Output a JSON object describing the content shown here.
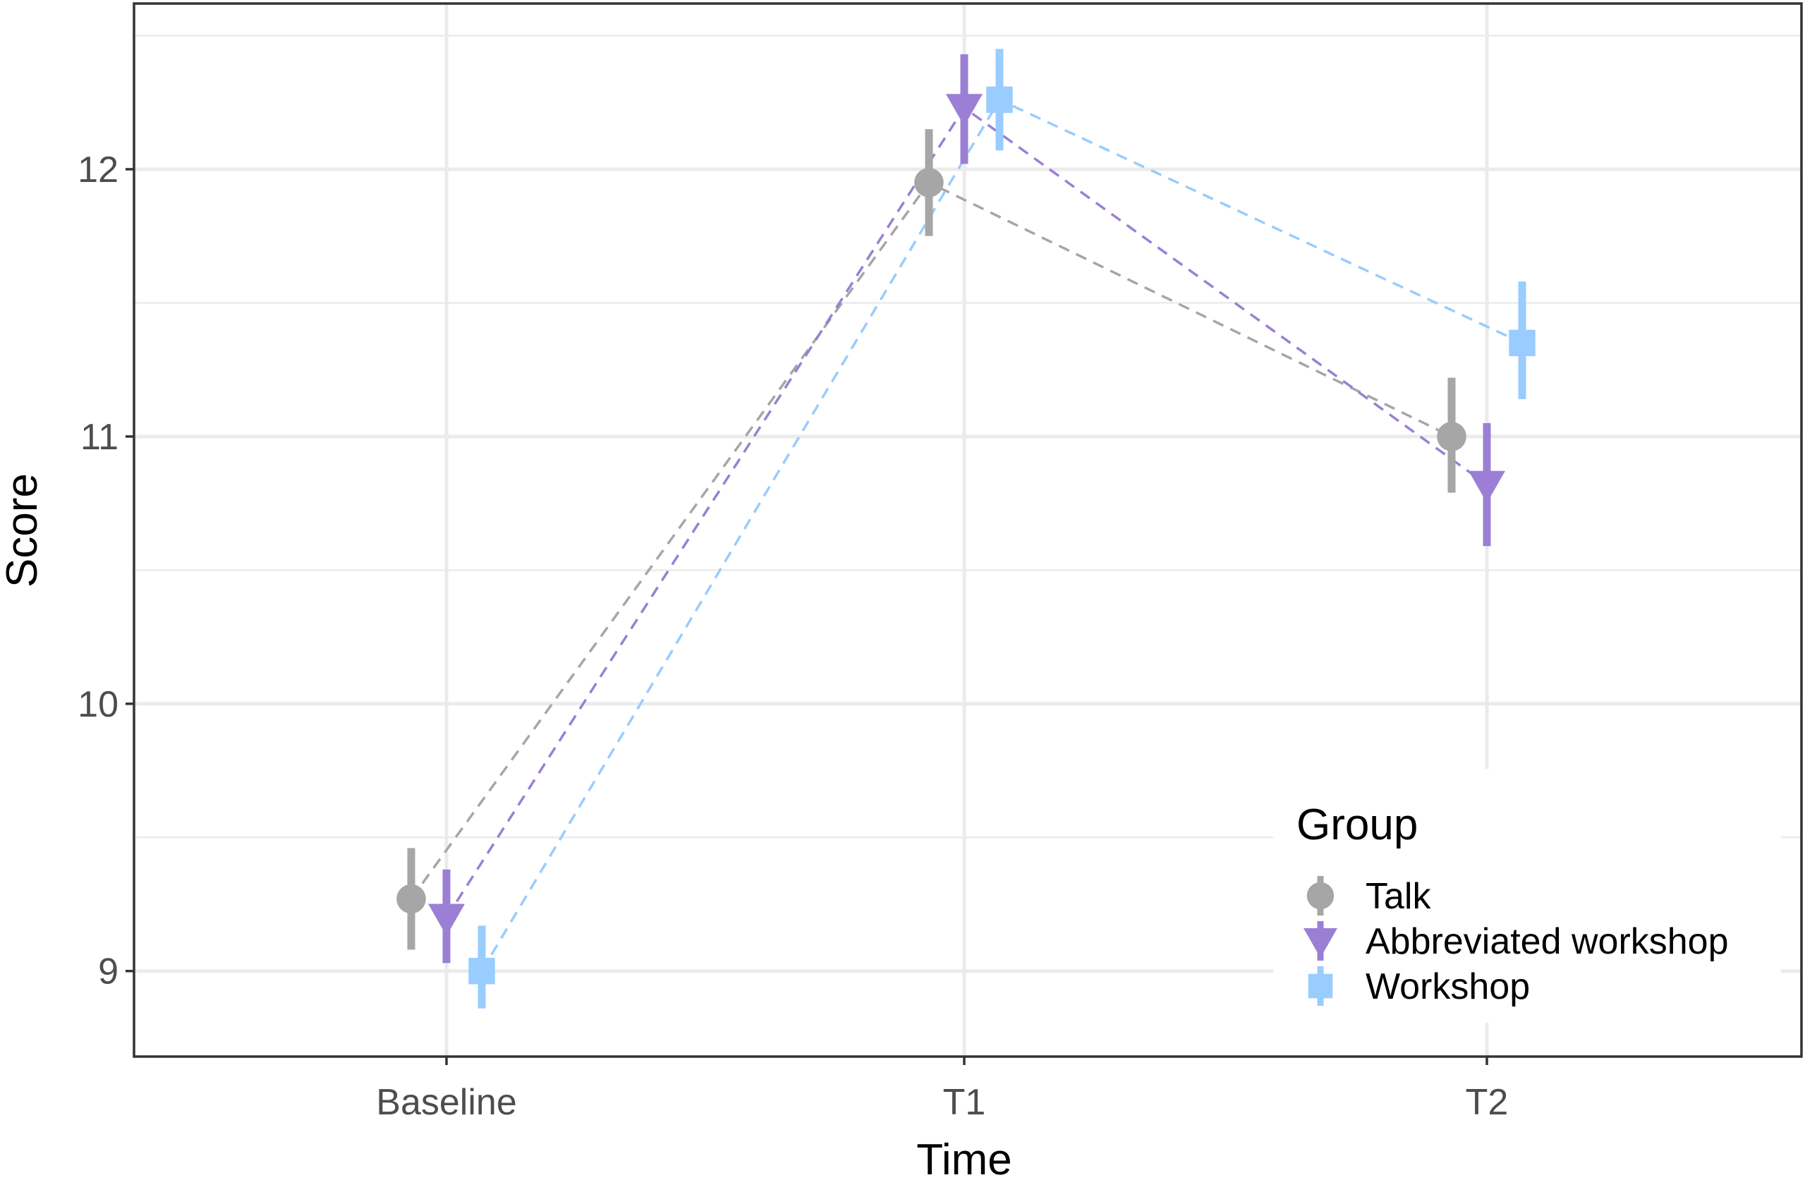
{
  "chart_data": {
    "type": "line",
    "title": "",
    "xlabel": "Time",
    "ylabel": "Score",
    "categories": [
      "Baseline",
      "T1",
      "T2"
    ],
    "ylim": [
      8.68,
      12.62
    ],
    "yticks": [
      9,
      10,
      11,
      12
    ],
    "ytick_labels": [
      "9",
      "10",
      "11",
      "12"
    ],
    "grid": true,
    "line_style": "dashed",
    "error_bars": true,
    "legend": {
      "title": "Group",
      "position": "bottom-right"
    },
    "series": [
      {
        "name": "Talk",
        "marker": "circle",
        "color": "#a6a6a6",
        "values": [
          9.27,
          11.95,
          11.0
        ],
        "lower": [
          9.08,
          11.75,
          10.79
        ],
        "upper": [
          9.46,
          12.15,
          11.22
        ]
      },
      {
        "name": "Abbreviated workshop",
        "marker": "triangle-down",
        "color": "#9b7fd4",
        "values": [
          9.2,
          12.23,
          10.82
        ],
        "lower": [
          9.03,
          12.02,
          10.59
        ],
        "upper": [
          9.38,
          12.43,
          11.05
        ]
      },
      {
        "name": "Workshop",
        "marker": "square",
        "color": "#99ccff",
        "values": [
          9.0,
          12.26,
          11.35
        ],
        "lower": [
          8.86,
          12.07,
          11.14
        ],
        "upper": [
          9.17,
          12.45,
          11.58
        ]
      }
    ]
  }
}
